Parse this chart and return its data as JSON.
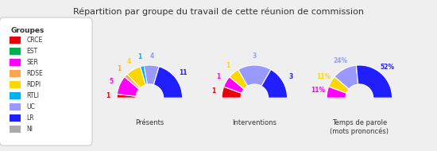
{
  "title": "Répartition par groupe du travail de cette réunion de commission",
  "groups": [
    "CRCE",
    "EST",
    "SER",
    "RDSE",
    "RDPI",
    "RTLI",
    "UC",
    "LR",
    "NI"
  ],
  "colors": [
    "#e8000d",
    "#00b050",
    "#ff00ff",
    "#ffa550",
    "#ffd700",
    "#00b0f0",
    "#9999ff",
    "#1f1fff",
    "#aaaaaa"
  ],
  "presences": [
    1,
    0,
    5,
    1,
    4,
    1,
    4,
    11,
    0
  ],
  "interventions": [
    1,
    0,
    1,
    0,
    1,
    0,
    3,
    3,
    0
  ],
  "temps_parole_pct": [
    0,
    0,
    11,
    0,
    11,
    0,
    24,
    52,
    0
  ],
  "chart1_label": "Présents",
  "chart2_label": "Interventions",
  "chart3_label": "Temps de parole\n(mots prononcés)",
  "legend_title": "Groupes",
  "bg_color": "#efefef",
  "box_color": "#ffffff"
}
